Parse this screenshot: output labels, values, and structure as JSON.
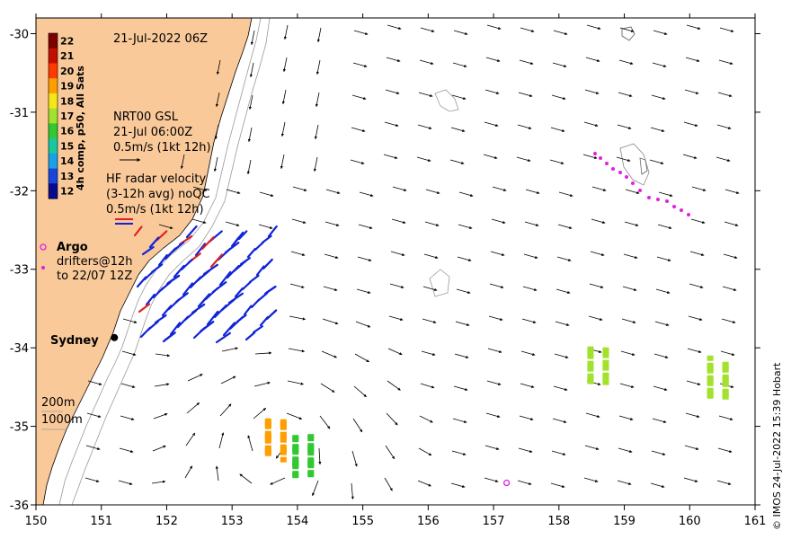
{
  "title": "21-Jul-2022 06Z",
  "gsl_legend": {
    "line1": "NRT00 GSL",
    "line2": "21-Jul 06:00Z",
    "line3": "0.5m/s (1kt 12h)"
  },
  "radar_legend": {
    "line1": "HF radar velocity",
    "line2": "(3-12h avg) noQC",
    "line3": "0.5m/s (1kt 12h)"
  },
  "argo_label": "Argo",
  "drifters": {
    "line1": "drifters@12h",
    "line2": "to 22/07 12Z"
  },
  "city": "Sydney",
  "isobaths": {
    "shallow": "200m",
    "deep": "1000m"
  },
  "credit": "© IMOS 24-Jul-2022 15:39 Hobart",
  "colorbar": {
    "title": "4h comp, p50, All Sats",
    "ticks": [
      "22",
      "21",
      "20",
      "19",
      "18",
      "17",
      "16",
      "15",
      "14",
      "13",
      "12"
    ],
    "colors": [
      "#7f0000",
      "#c11000",
      "#ff3a00",
      "#ff9e00",
      "#f5e61a",
      "#a3e22c",
      "#32c832",
      "#18c8a0",
      "#1aa0e6",
      "#1646dc",
      "#0a0a8c"
    ]
  },
  "chart_data": {
    "type": "map",
    "x_axis": {
      "ticks": [
        150,
        151,
        152,
        153,
        154,
        155,
        156,
        157,
        158,
        159,
        160,
        161
      ],
      "range": [
        150,
        161
      ]
    },
    "y_axis": {
      "ticks": [
        -30,
        -31,
        -32,
        -33,
        -34,
        -35,
        -36
      ],
      "range": [
        -36,
        -29.8
      ]
    },
    "argo_float": {
      "lon": 157.2,
      "lat": -35.72
    },
    "sydney": {
      "lon": 151.2,
      "lat": -33.87
    },
    "sst_patches": [
      {
        "name": "sst-patch-east",
        "lon": 160.5,
        "lat": -34.35,
        "temp": 17
      },
      {
        "name": "sst-patch-mid",
        "lon": 158.6,
        "lat": -34.2,
        "temp": 17
      },
      {
        "name": "sst-patch-yellow-west",
        "lon": 153.6,
        "lat": -35.15,
        "temp": 19
      },
      {
        "name": "sst-patch-green-small",
        "lon": 153.95,
        "lat": -35.35,
        "temp": 16
      }
    ]
  }
}
